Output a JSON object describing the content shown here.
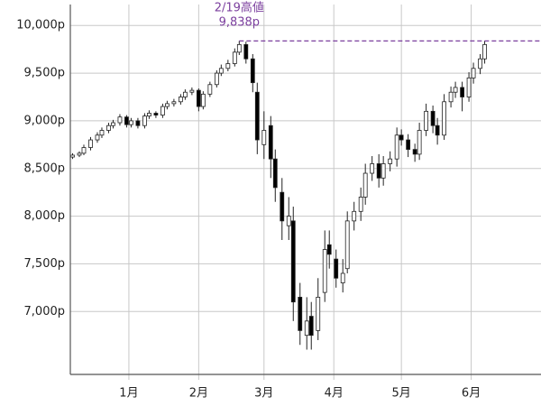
{
  "chart_data": {
    "type": "candlestick",
    "x": [
      -25,
      -22,
      -20,
      -17,
      -14,
      -12,
      -9,
      -7,
      -4,
      -1,
      1,
      4,
      7,
      9,
      12,
      15,
      17,
      20,
      23,
      25,
      28,
      31,
      33,
      36,
      39,
      41,
      44,
      47,
      49,
      52,
      55,
      57,
      60,
      63,
      65,
      68,
      71,
      73,
      76,
      79,
      81,
      84,
      87,
      89,
      92,
      95,
      97,
      100,
      103,
      105,
      108,
      111,
      113,
      116,
      119,
      121,
      124,
      127,
      129,
      132,
      135,
      137,
      140,
      143,
      145,
      148,
      151,
      153,
      156,
      158
    ],
    "open": [
      8620,
      8640,
      8660,
      8720,
      8800,
      8850,
      8900,
      8950,
      8980,
      9040,
      8960,
      9000,
      8950,
      9050,
      9080,
      9060,
      9150,
      9180,
      9200,
      9250,
      9300,
      9320,
      9150,
      9280,
      9380,
      9500,
      9550,
      9600,
      9720,
      9800,
      9650,
      9300,
      8750,
      8950,
      8600,
      8250,
      7900,
      7950,
      7150,
      6750,
      6950,
      6800,
      7200,
      7700,
      7550,
      7300,
      7450,
      7950,
      8050,
      8200,
      8450,
      8550,
      8400,
      8550,
      8600,
      8850,
      8800,
      8700,
      8650,
      8900,
      9100,
      8950,
      8850,
      9200,
      9300,
      9350,
      9250,
      9450,
      9550,
      9650
    ],
    "high": [
      8660,
      8680,
      8750,
      8830,
      8880,
      8930,
      8980,
      9010,
      9070,
      9060,
      9030,
      9030,
      9080,
      9110,
      9100,
      9180,
      9210,
      9230,
      9280,
      9330,
      9350,
      9340,
      9310,
      9410,
      9530,
      9590,
      9640,
      9760,
      9838,
      9830,
      9700,
      9400,
      9100,
      9050,
      8700,
      8400,
      8200,
      8100,
      7300,
      7150,
      7100,
      7350,
      7850,
      7850,
      7650,
      7550,
      8050,
      8150,
      8300,
      8550,
      8630,
      8650,
      8630,
      8680,
      8930,
      8910,
      8860,
      8760,
      8980,
      9180,
      9160,
      9030,
      9280,
      9360,
      9410,
      9410,
      9510,
      9610,
      9700,
      9840
    ],
    "low": [
      8600,
      8620,
      8640,
      8690,
      8770,
      8820,
      8870,
      8920,
      8950,
      8930,
      8930,
      8920,
      8920,
      9020,
      9030,
      9030,
      9120,
      9150,
      9170,
      9220,
      9270,
      9100,
      9120,
      9250,
      9350,
      9470,
      9520,
      9570,
      9690,
      9600,
      9300,
      8650,
      8600,
      8400,
      8150,
      7750,
      7750,
      6900,
      6650,
      6600,
      6600,
      6700,
      7100,
      7450,
      7250,
      7200,
      7400,
      7850,
      7950,
      8120,
      8370,
      8300,
      8320,
      8470,
      8520,
      8740,
      8620,
      8570,
      8590,
      8840,
      8870,
      8750,
      8800,
      9140,
      9240,
      9100,
      9200,
      9390,
      9490,
      9600
    ],
    "close": [
      8640,
      8660,
      8720,
      8800,
      8850,
      8900,
      8950,
      8980,
      9040,
      8960,
      9000,
      8950,
      9050,
      9080,
      9060,
      9150,
      9180,
      9200,
      9250,
      9300,
      9320,
      9150,
      9280,
      9380,
      9500,
      9550,
      9600,
      9720,
      9800,
      9650,
      9400,
      8800,
      8900,
      8600,
      8300,
      7950,
      8000,
      7100,
      6800,
      6900,
      6750,
      7150,
      7650,
      7600,
      7350,
      7400,
      7950,
      8050,
      8200,
      8450,
      8550,
      8400,
      8550,
      8600,
      8850,
      8800,
      8700,
      8650,
      8900,
      9100,
      8950,
      8850,
      9200,
      9300,
      9350,
      9250,
      9450,
      9550,
      9650,
      9800
    ],
    "up_color": "#ffffff",
    "down_color": "#000000",
    "xlim": [
      -26,
      183
    ],
    "xticks": [
      {
        "value": 0,
        "label": "1月"
      },
      {
        "value": 31,
        "label": "2月"
      },
      {
        "value": 60,
        "label": "3月"
      },
      {
        "value": 91,
        "label": "4月"
      },
      {
        "value": 121,
        "label": "5月"
      },
      {
        "value": 152,
        "label": "6月"
      }
    ],
    "ylim": [
      6340,
      10220
    ],
    "yticks": [
      {
        "value": 7000,
        "label": "7,000p"
      },
      {
        "value": 7500,
        "label": "7,500p"
      },
      {
        "value": 8000,
        "label": "8,000p"
      },
      {
        "value": 8500,
        "label": "8,500p"
      },
      {
        "value": 9000,
        "label": "9,000p"
      },
      {
        "value": 9500,
        "label": "9,500p"
      },
      {
        "value": 10000,
        "label": "10,000p"
      }
    ],
    "grid": true,
    "annotation": {
      "text": "2/19高値",
      "label": "9,838p",
      "value": 9838,
      "x": 49,
      "color": "#7b3f9e"
    }
  }
}
